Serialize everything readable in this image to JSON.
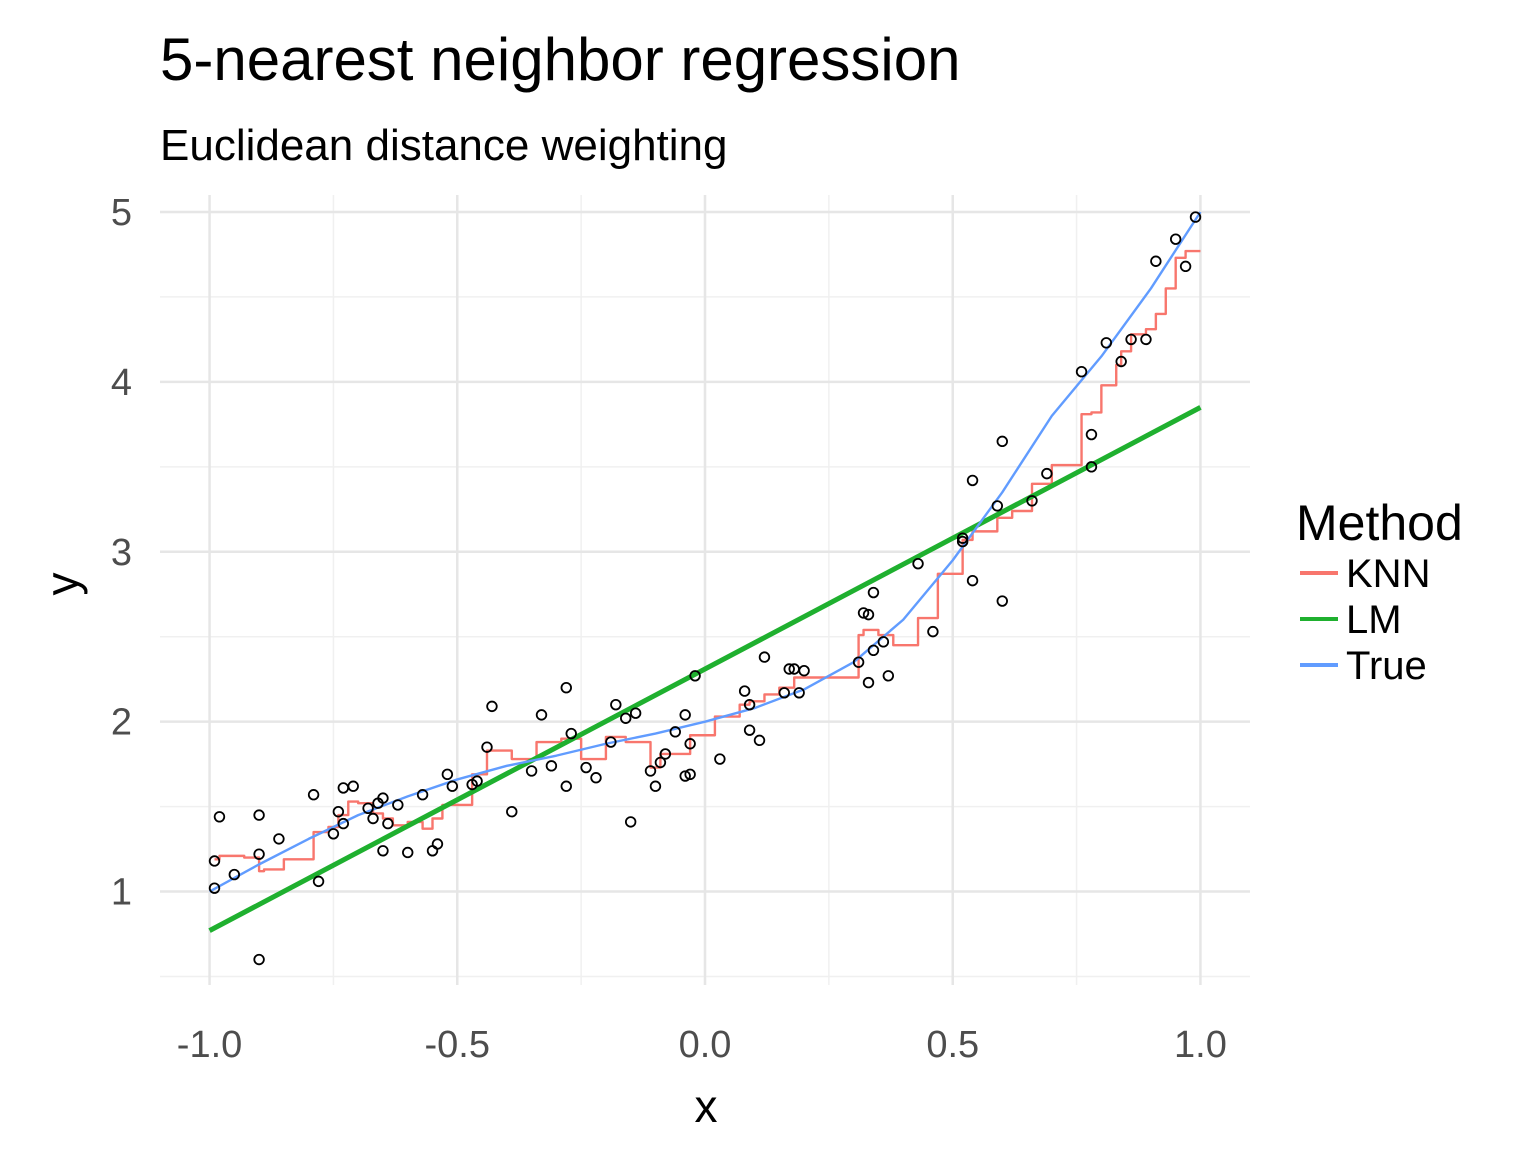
{
  "chart_data": {
    "type": "scatter",
    "title": "5-nearest neighbor regression",
    "subtitle": "Euclidean distance weighting",
    "xlabel": "x",
    "ylabel": "y",
    "xlim": [
      -1.1,
      1.1
    ],
    "ylim": [
      0.45,
      5.1
    ],
    "x_ticks": [
      -1.0,
      -0.5,
      0.0,
      0.5,
      1.0
    ],
    "x_tick_labels": [
      "-1.0",
      "-0.5",
      "0.0",
      "0.5",
      "1.0"
    ],
    "y_ticks": [
      1,
      2,
      3,
      4,
      5
    ],
    "y_tick_labels": [
      "1",
      "2",
      "3",
      "4",
      "5"
    ],
    "grid": true,
    "legend": {
      "title": "Method",
      "position": "right",
      "entries": [
        {
          "label": "KNN",
          "color": "#F8766D"
        },
        {
          "label": "LM",
          "color": "#1FB02F"
        },
        {
          "label": "True",
          "color": "#619CFF"
        }
      ]
    },
    "points": [
      [
        -0.99,
        1.18
      ],
      [
        -0.99,
        1.02
      ],
      [
        -0.98,
        1.44
      ],
      [
        -0.95,
        1.1
      ],
      [
        -0.9,
        1.22
      ],
      [
        -0.9,
        1.45
      ],
      [
        -0.9,
        0.6
      ],
      [
        -0.86,
        1.31
      ],
      [
        -0.79,
        1.57
      ],
      [
        -0.78,
        1.06
      ],
      [
        -0.75,
        1.34
      ],
      [
        -0.74,
        1.47
      ],
      [
        -0.73,
        1.4
      ],
      [
        -0.73,
        1.61
      ],
      [
        -0.71,
        1.62
      ],
      [
        -0.68,
        1.49
      ],
      [
        -0.67,
        1.43
      ],
      [
        -0.66,
        1.52
      ],
      [
        -0.65,
        1.55
      ],
      [
        -0.65,
        1.24
      ],
      [
        -0.64,
        1.4
      ],
      [
        -0.62,
        1.51
      ],
      [
        -0.6,
        1.23
      ],
      [
        -0.57,
        1.57
      ],
      [
        -0.55,
        1.24
      ],
      [
        -0.54,
        1.28
      ],
      [
        -0.52,
        1.69
      ],
      [
        -0.51,
        1.62
      ],
      [
        -0.47,
        1.63
      ],
      [
        -0.46,
        1.65
      ],
      [
        -0.44,
        1.85
      ],
      [
        -0.43,
        2.09
      ],
      [
        -0.39,
        1.47
      ],
      [
        -0.35,
        1.71
      ],
      [
        -0.33,
        2.04
      ],
      [
        -0.31,
        1.74
      ],
      [
        -0.28,
        2.2
      ],
      [
        -0.28,
        1.62
      ],
      [
        -0.27,
        1.93
      ],
      [
        -0.24,
        1.73
      ],
      [
        -0.22,
        1.67
      ],
      [
        -0.19,
        1.88
      ],
      [
        -0.18,
        2.1
      ],
      [
        -0.16,
        2.02
      ],
      [
        -0.15,
        1.41
      ],
      [
        -0.14,
        2.05
      ],
      [
        -0.11,
        1.71
      ],
      [
        -0.1,
        1.62
      ],
      [
        -0.09,
        1.76
      ],
      [
        -0.08,
        1.81
      ],
      [
        -0.06,
        1.94
      ],
      [
        -0.04,
        2.04
      ],
      [
        -0.04,
        1.68
      ],
      [
        -0.03,
        1.69
      ],
      [
        -0.03,
        1.87
      ],
      [
        -0.02,
        2.27
      ],
      [
        0.03,
        1.78
      ],
      [
        0.08,
        2.18
      ],
      [
        0.09,
        2.1
      ],
      [
        0.09,
        1.95
      ],
      [
        0.11,
        1.89
      ],
      [
        0.12,
        2.38
      ],
      [
        0.16,
        2.17
      ],
      [
        0.17,
        2.31
      ],
      [
        0.18,
        2.31
      ],
      [
        0.19,
        2.17
      ],
      [
        0.2,
        2.3
      ],
      [
        0.31,
        2.35
      ],
      [
        0.32,
        2.64
      ],
      [
        0.33,
        2.63
      ],
      [
        0.33,
        2.23
      ],
      [
        0.34,
        2.76
      ],
      [
        0.34,
        2.42
      ],
      [
        0.36,
        2.47
      ],
      [
        0.37,
        2.27
      ],
      [
        0.43,
        2.93
      ],
      [
        0.46,
        2.53
      ],
      [
        0.52,
        3.08
      ],
      [
        0.52,
        3.06
      ],
      [
        0.54,
        3.42
      ],
      [
        0.54,
        2.83
      ],
      [
        0.59,
        3.27
      ],
      [
        0.6,
        3.65
      ],
      [
        0.6,
        2.71
      ],
      [
        0.66,
        3.3
      ],
      [
        0.69,
        3.46
      ],
      [
        0.76,
        4.06
      ],
      [
        0.78,
        3.69
      ],
      [
        0.78,
        3.5
      ],
      [
        0.81,
        4.23
      ],
      [
        0.84,
        4.12
      ],
      [
        0.86,
        4.25
      ],
      [
        0.89,
        4.25
      ],
      [
        0.91,
        4.71
      ],
      [
        0.95,
        4.84
      ],
      [
        0.97,
        4.68
      ],
      [
        0.99,
        4.97
      ]
    ],
    "series": [
      {
        "name": "KNN",
        "color": "#F8766D",
        "step": true,
        "x": [
          -0.99,
          -0.98,
          -0.93,
          -0.9,
          -0.89,
          -0.85,
          -0.79,
          -0.76,
          -0.74,
          -0.72,
          -0.7,
          -0.67,
          -0.65,
          -0.63,
          -0.6,
          -0.57,
          -0.55,
          -0.53,
          -0.5,
          -0.47,
          -0.44,
          -0.39,
          -0.34,
          -0.29,
          -0.25,
          -0.2,
          -0.16,
          -0.11,
          -0.09,
          -0.06,
          -0.03,
          0.02,
          0.07,
          0.09,
          0.12,
          0.15,
          0.18,
          0.21,
          0.31,
          0.32,
          0.35,
          0.38,
          0.43,
          0.47,
          0.52,
          0.54,
          0.59,
          0.62,
          0.66,
          0.7,
          0.76,
          0.78,
          0.8,
          0.83,
          0.84,
          0.86,
          0.89,
          0.91,
          0.93,
          0.95,
          0.97,
          1.0
        ],
        "y": [
          1.19,
          1.21,
          1.2,
          1.12,
          1.13,
          1.19,
          1.35,
          1.38,
          1.45,
          1.53,
          1.52,
          1.46,
          1.43,
          1.39,
          1.41,
          1.37,
          1.43,
          1.51,
          1.51,
          1.69,
          1.83,
          1.78,
          1.88,
          1.9,
          1.78,
          1.91,
          1.88,
          1.73,
          1.81,
          1.81,
          1.92,
          2.03,
          2.1,
          2.12,
          2.16,
          2.2,
          2.26,
          2.26,
          2.51,
          2.54,
          2.51,
          2.45,
          2.61,
          2.87,
          3.07,
          3.12,
          3.2,
          3.24,
          3.4,
          3.51,
          3.81,
          3.82,
          3.98,
          4.1,
          4.18,
          4.28,
          4.31,
          4.4,
          4.55,
          4.73,
          4.77,
          4.77
        ]
      },
      {
        "name": "LM",
        "color": "#1FB02F",
        "x": [
          -1.0,
          1.0
        ],
        "y": [
          0.77,
          3.85
        ]
      },
      {
        "name": "True",
        "color": "#619CFF",
        "x": [
          -1.0,
          -0.9,
          -0.8,
          -0.7,
          -0.6,
          -0.5,
          -0.4,
          -0.3,
          -0.2,
          -0.1,
          0.0,
          0.1,
          0.2,
          0.3,
          0.4,
          0.5,
          0.6,
          0.7,
          0.8,
          0.9,
          1.0
        ],
        "y": [
          1.0,
          1.16,
          1.31,
          1.45,
          1.56,
          1.66,
          1.74,
          1.8,
          1.87,
          1.93,
          2.0,
          2.08,
          2.19,
          2.35,
          2.6,
          2.95,
          3.35,
          3.8,
          4.15,
          4.55,
          5.0
        ]
      }
    ]
  }
}
